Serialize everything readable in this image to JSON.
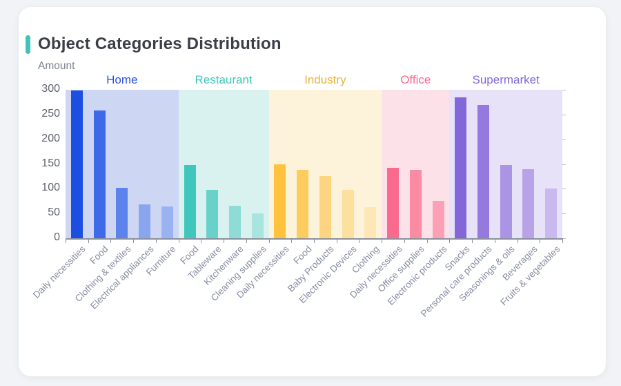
{
  "title": "Object Categories Distribution",
  "card": {
    "accent_color": "#41c3b8",
    "background": "#ffffff"
  },
  "page": {
    "background": "#f1f3f6"
  },
  "chart_data": {
    "type": "bar",
    "title": "Object Categories Distribution",
    "xlabel": "",
    "ylabel": "Amount",
    "ylim": [
      0,
      300
    ],
    "yticks": [
      0,
      50,
      100,
      150,
      200,
      250,
      300
    ],
    "grid": false,
    "legend_position": "none",
    "groups": [
      {
        "name": "Home",
        "label_color": "#2d51e5",
        "band_color": "#cdd7f4",
        "bars": [
          {
            "label": "Daily necessities",
            "value": 298,
            "color": "#1c4fe1"
          },
          {
            "label": "Food",
            "value": 258,
            "color": "#3e69e7"
          },
          {
            "label": "Clothing & textiles",
            "value": 102,
            "color": "#5c83eb"
          },
          {
            "label": "Electrical appliances",
            "value": 68,
            "color": "#8aa5f0"
          },
          {
            "label": "Furniture",
            "value": 64,
            "color": "#9bb2f2"
          }
        ]
      },
      {
        "name": "Restaurant",
        "label_color": "#3fc7bd",
        "band_color": "#d9f2ef",
        "bars": [
          {
            "label": "Food",
            "value": 148,
            "color": "#3fc7bd"
          },
          {
            "label": "Tableware",
            "value": 97,
            "color": "#68d1c9"
          },
          {
            "label": "Kitchenware",
            "value": 65,
            "color": "#8edcd6"
          },
          {
            "label": "Cleaning supplies",
            "value": 50,
            "color": "#a9e5df"
          }
        ]
      },
      {
        "name": "Industry",
        "label_color": "#e9b33d",
        "band_color": "#fdf3da",
        "bars": [
          {
            "label": "Daily necessities",
            "value": 150,
            "color": "#fec33e"
          },
          {
            "label": "Food",
            "value": 138,
            "color": "#fdcc5f"
          },
          {
            "label": "Baby Products",
            "value": 126,
            "color": "#fdd580"
          },
          {
            "label": "Electronic Devices",
            "value": 98,
            "color": "#fde09e"
          },
          {
            "label": "Clothing",
            "value": 63,
            "color": "#fee7b5"
          }
        ]
      },
      {
        "name": "Office",
        "label_color": "#fa6a8e",
        "band_color": "#fde1e9",
        "bars": [
          {
            "label": "Daily necessities",
            "value": 142,
            "color": "#fa6a8e"
          },
          {
            "label": "Office supplies",
            "value": 138,
            "color": "#fb8ba3"
          },
          {
            "label": "Electronic products",
            "value": 75,
            "color": "#fca0b5"
          }
        ]
      },
      {
        "name": "Supermarket",
        "label_color": "#8467dc",
        "band_color": "#e8e2f8",
        "bars": [
          {
            "label": "Snacks",
            "value": 284,
            "color": "#8366da"
          },
          {
            "label": "Personal care products",
            "value": 270,
            "color": "#9579df"
          },
          {
            "label": "Seasonings & oils",
            "value": 148,
            "color": "#ac94e5"
          },
          {
            "label": "Beverages",
            "value": 140,
            "color": "#b8a3e9"
          },
          {
            "label": "Fruits & vegetables",
            "value": 101,
            "color": "#c9b9ee"
          }
        ]
      }
    ]
  }
}
